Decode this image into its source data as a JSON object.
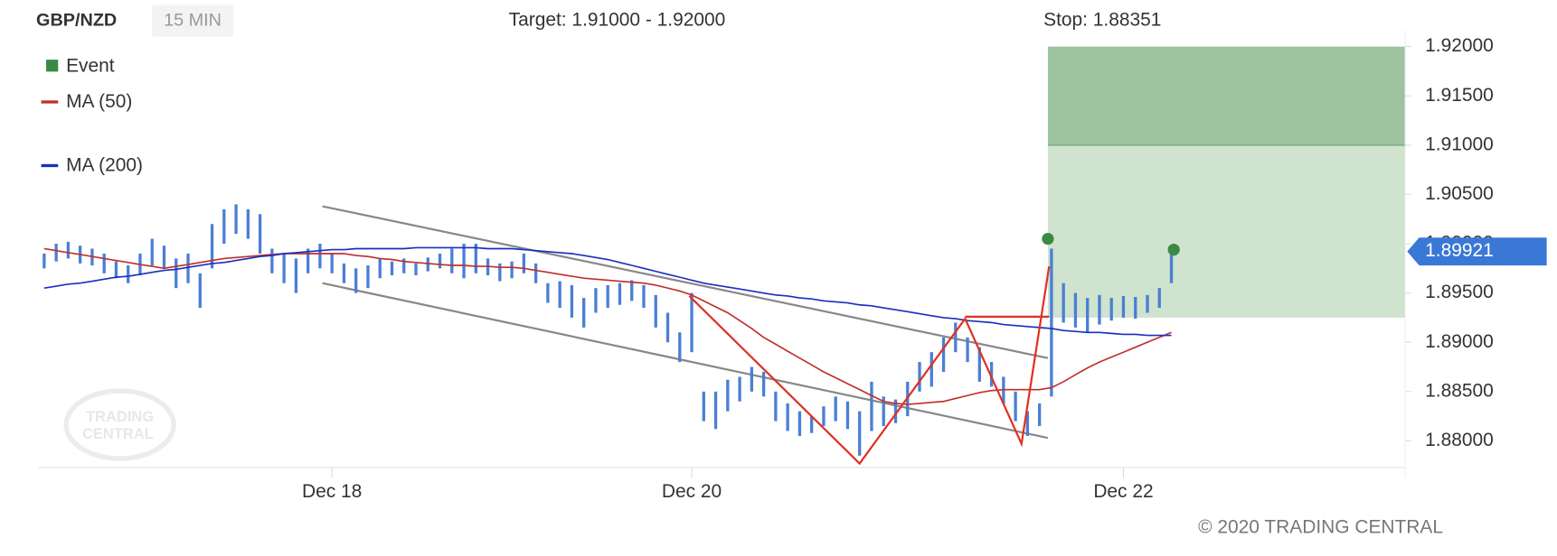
{
  "chart_data": {
    "type": "range_bar",
    "symbol": "GBP/NZD",
    "interval": "15 MIN",
    "target_label": "Target: 1.91000 - 1.92000",
    "stop_label": "Stop: 1.88351",
    "copyright": "© 2020 TRADING CENTRAL",
    "watermark": [
      "TRADING",
      "CENTRAL"
    ],
    "categories": [
      null,
      null,
      null,
      null,
      null,
      null,
      null,
      null,
      null,
      null,
      null,
      null,
      null,
      null,
      null,
      null,
      null,
      null,
      null,
      null,
      null,
      null,
      null,
      null,
      "Dec 18",
      null,
      null,
      null,
      null,
      null,
      null,
      null,
      null,
      null,
      null,
      null,
      null,
      null,
      null,
      null,
      null,
      null,
      null,
      null,
      null,
      null,
      null,
      null,
      null,
      null,
      null,
      null,
      null,
      null,
      "Dec 20",
      null,
      null,
      null,
      null,
      null,
      null,
      null,
      null,
      null,
      null,
      null,
      null,
      null,
      null,
      null,
      null,
      null,
      null,
      null,
      null,
      null,
      null,
      null,
      null,
      null,
      null,
      null,
      null,
      null,
      null,
      null,
      null,
      null,
      null,
      null,
      "Dec 22",
      null,
      null,
      null,
      null,
      null,
      null,
      null,
      null,
      null,
      null,
      null,
      null,
      null,
      null,
      null,
      null,
      null,
      null,
      null,
      null,
      null,
      null,
      null
    ],
    "bars": {
      "color": "#4a7fd4",
      "low": [
        1.8975,
        1.8982,
        1.8985,
        1.898,
        1.8978,
        1.897,
        1.8965,
        1.896,
        1.8968,
        1.8978,
        1.8975,
        1.8955,
        1.896,
        1.8935,
        1.8975,
        1.9,
        1.901,
        1.9005,
        1.899,
        1.897,
        1.896,
        1.895,
        1.897,
        1.8975,
        1.897,
        1.896,
        1.895,
        1.8955,
        1.8965,
        1.8968,
        1.897,
        1.8968,
        1.8972,
        1.8975,
        1.897,
        1.8965,
        1.897,
        1.8968,
        1.8962,
        1.8965,
        1.897,
        1.896,
        1.894,
        1.8935,
        1.8925,
        1.8915,
        1.893,
        1.8935,
        1.8938,
        1.8942,
        1.8935,
        1.8915,
        1.89,
        1.888,
        1.889,
        1.882,
        1.8812,
        1.883,
        1.884,
        1.885,
        1.8845,
        1.882,
        1.881,
        1.8805,
        1.8808,
        1.8815,
        1.882,
        1.8812,
        1.8785,
        1.881,
        1.8815,
        1.8818,
        1.8825,
        1.885,
        1.8855,
        1.887,
        1.889,
        1.888,
        1.886,
        1.8855,
        1.8838,
        1.882,
        1.8805,
        1.8815,
        1.8845,
        1.892,
        1.8915,
        1.891,
        1.8918,
        1.8922,
        1.8925,
        1.8924,
        1.893,
        1.8935,
        1.896,
        null,
        null,
        null,
        null,
        null,
        null,
        null,
        null,
        null,
        null,
        null,
        null,
        null,
        null,
        null,
        null,
        null,
        null,
        null
      ],
      "high": [
        1.899,
        1.9,
        1.9002,
        1.8998,
        1.8995,
        1.899,
        1.8982,
        1.8978,
        1.899,
        1.9005,
        1.8998,
        1.8985,
        1.899,
        1.897,
        1.902,
        1.9035,
        1.904,
        1.9035,
        1.903,
        1.8995,
        1.899,
        1.8985,
        1.8995,
        1.9,
        1.899,
        1.898,
        1.8975,
        1.8978,
        1.8985,
        1.8982,
        1.8985,
        1.898,
        1.8986,
        1.899,
        1.8995,
        1.9,
        1.9,
        1.8985,
        1.898,
        1.8982,
        1.899,
        1.898,
        1.896,
        1.8962,
        1.8958,
        1.8945,
        1.8955,
        1.8958,
        1.896,
        1.8963,
        1.8958,
        1.8948,
        1.893,
        1.891,
        1.895,
        1.885,
        1.885,
        1.8862,
        1.8865,
        1.8875,
        1.887,
        1.885,
        1.8838,
        1.883,
        1.8825,
        1.8835,
        1.8845,
        1.884,
        1.883,
        1.886,
        1.8845,
        1.8842,
        1.886,
        1.888,
        1.889,
        1.8905,
        1.892,
        1.8905,
        1.8895,
        1.888,
        1.8865,
        1.885,
        1.883,
        1.8838,
        1.8995,
        1.896,
        1.895,
        1.8945,
        1.8948,
        1.8945,
        1.8947,
        1.8946,
        1.8948,
        1.8955,
        1.8992,
        null,
        null,
        null,
        null,
        null,
        null,
        null,
        null,
        null,
        null,
        null,
        null,
        null,
        null,
        null,
        null,
        null,
        null,
        null
      ]
    },
    "series": [
      {
        "name": "MA (50)",
        "color": "#c0302a",
        "values": [
          1.8995,
          1.8993,
          1.8991,
          1.8989,
          1.8987,
          1.8985,
          1.8983,
          1.8981,
          1.8979,
          1.8977,
          1.8975,
          1.8977,
          1.8979,
          1.8981,
          1.8983,
          1.8985,
          1.8986,
          1.8987,
          1.8988,
          1.8989,
          1.899,
          1.899,
          1.899,
          1.899,
          1.899,
          1.899,
          1.8988,
          1.8987,
          1.8985,
          1.8984,
          1.8982,
          1.8981,
          1.898,
          1.8979,
          1.8978,
          1.8978,
          1.8977,
          1.8977,
          1.8976,
          1.8976,
          1.8975,
          1.8973,
          1.8971,
          1.8969,
          1.8967,
          1.8965,
          1.8964,
          1.8963,
          1.8962,
          1.8961,
          1.896,
          1.8958,
          1.8955,
          1.8952,
          1.8948,
          1.8942,
          1.8936,
          1.893,
          1.8922,
          1.8914,
          1.8905,
          1.8898,
          1.8891,
          1.8884,
          1.8877,
          1.887,
          1.8864,
          1.8858,
          1.8852,
          1.8846,
          1.884,
          1.8838,
          1.8837,
          1.8838,
          1.8839,
          1.884,
          1.8843,
          1.8846,
          1.8849,
          1.8851,
          1.8852,
          1.8852,
          1.8852,
          1.8852,
          1.8854,
          1.886,
          1.8867,
          1.8874,
          1.888,
          1.8885,
          1.889,
          1.8895,
          1.89,
          1.8905,
          1.891,
          null,
          null,
          null,
          null,
          null,
          null,
          null,
          null,
          null,
          null,
          null,
          null,
          null,
          null,
          null,
          null,
          null,
          null,
          null
        ]
      },
      {
        "name": "MA (200)",
        "color": "#1a2fc0",
        "values": [
          1.8955,
          1.8957,
          1.8959,
          1.896,
          1.8962,
          1.8964,
          1.8966,
          1.8967,
          1.8969,
          1.8971,
          1.8973,
          1.8974,
          1.8976,
          1.8978,
          1.898,
          1.8981,
          1.8983,
          1.8985,
          1.8987,
          1.8988,
          1.899,
          1.8991,
          1.8992,
          1.8993,
          1.8994,
          1.8994,
          1.8995,
          1.8995,
          1.8995,
          1.8995,
          1.8995,
          1.8996,
          1.8996,
          1.8996,
          1.8996,
          1.8996,
          1.8996,
          1.8995,
          1.8995,
          1.8995,
          1.8994,
          1.8993,
          1.8992,
          1.8991,
          1.899,
          1.8988,
          1.8986,
          1.8984,
          1.8981,
          1.8978,
          1.8975,
          1.8972,
          1.8969,
          1.8966,
          1.8963,
          1.896,
          1.8958,
          1.8956,
          1.8954,
          1.8952,
          1.895,
          1.8948,
          1.8947,
          1.8945,
          1.8944,
          1.8942,
          1.8941,
          1.894,
          1.8938,
          1.8937,
          1.8935,
          1.8933,
          1.8931,
          1.8929,
          1.8927,
          1.8925,
          1.8924,
          1.8922,
          1.8921,
          1.892,
          1.8918,
          1.8917,
          1.8916,
          1.8915,
          1.8914,
          1.8912,
          1.8911,
          1.891,
          1.891,
          1.8909,
          1.8908,
          1.8908,
          1.8907,
          1.8907,
          1.8907,
          null,
          null,
          null,
          null,
          null,
          null,
          null,
          null,
          null,
          null,
          null,
          null,
          null,
          null,
          null,
          null,
          null,
          null,
          null
        ]
      }
    ],
    "events": {
      "name": "Event",
      "color": "#3a8a45",
      "x": [
        83.7,
        94.2
      ],
      "y": [
        1.9005,
        1.8994
      ]
    },
    "channel": {
      "color": "#888888",
      "lines": [
        {
          "x": [
            23.2,
            83.7
          ],
          "y": [
            1.9038,
            1.8884
          ]
        },
        {
          "x": [
            23.2,
            83.7
          ],
          "y": [
            1.896,
            1.8803
          ]
        }
      ]
    },
    "pattern": {
      "color": "#e03020",
      "x": [
        53.8,
        68,
        76.8,
        81.5,
        83.8
      ],
      "y": [
        1.8947,
        1.8777,
        1.8924,
        1.8797,
        1.8977
      ]
    },
    "neckline": {
      "color": "#e03020",
      "x": [
        76.8,
        83.8
      ],
      "y": [
        1.8926,
        1.8926
      ]
    },
    "target_zone": {
      "x_start": 83.7,
      "low": 1.91,
      "high": 1.92,
      "color": "#9dc49f"
    },
    "projection_zone": {
      "x_start": 83.7,
      "low": 1.8925,
      "high": 1.91,
      "color": "#cfe3cf"
    },
    "last_price": {
      "value": 1.89921,
      "label": "1.89921",
      "color": "#3a78d6"
    },
    "ylim": [
      1.8773,
      1.9217
    ],
    "yticks": [
      {
        "value": 1.88,
        "label": "1.88000"
      },
      {
        "value": 1.885,
        "label": "1.88500"
      },
      {
        "value": 1.89,
        "label": "1.89000"
      },
      {
        "value": 1.895,
        "label": "1.89500"
      },
      {
        "value": 1.9,
        "label": "1.90000"
      },
      {
        "value": 1.905,
        "label": "1.90500"
      },
      {
        "value": 1.91,
        "label": "1.91000"
      },
      {
        "value": 1.915,
        "label": "1.91500"
      },
      {
        "value": 1.92,
        "label": "1.92000"
      }
    ],
    "grid": false
  }
}
